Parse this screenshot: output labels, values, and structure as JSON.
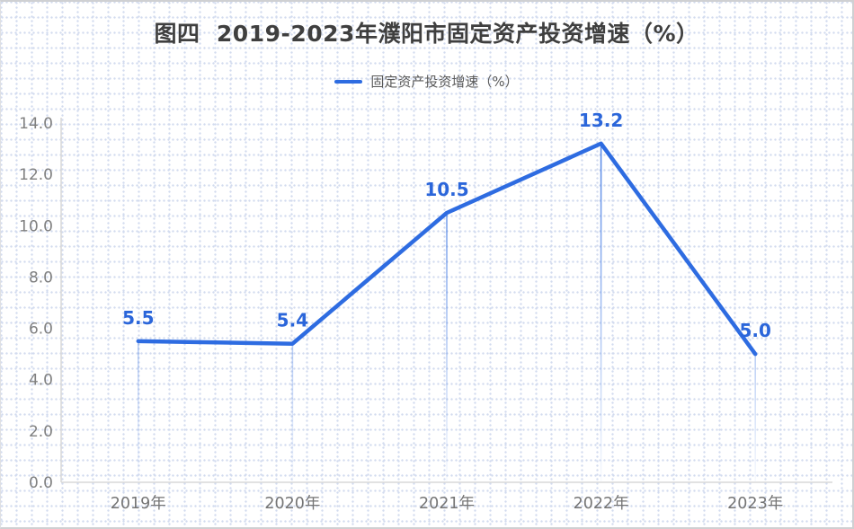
{
  "title": "图四  2019-2023年濮阳市固定资产投资增速（%）",
  "legend": {
    "label": "固定资产投资增速（%）"
  },
  "chart_data": {
    "type": "line",
    "title": "图四  2019-2023年濮阳市固定资产投资增速（%）",
    "categories": [
      "2019年",
      "2020年",
      "2021年",
      "2022年",
      "2023年"
    ],
    "series": [
      {
        "name": "固定资产投资增速（%）",
        "values": [
          5.5,
          5.4,
          10.5,
          13.2,
          5.0
        ]
      }
    ],
    "data_labels": [
      "5.5",
      "5.4",
      "10.5",
      "13.2",
      "5.0"
    ],
    "xlabel": "",
    "ylabel": "",
    "ylim": [
      0,
      14
    ],
    "ytick_labels": [
      "0.0",
      "2.0",
      "4.0",
      "6.0",
      "8.0",
      "10.0",
      "12.0",
      "14.0"
    ],
    "ytick_values": [
      0,
      2,
      4,
      6,
      8,
      10,
      12,
      14
    ],
    "grid": false,
    "legend_position": "top",
    "colors": {
      "line": "#2e6ce1",
      "data_label": "#2b66da",
      "ytick_text": "#808080",
      "xtick_text": "#757575",
      "axis_line": "#d8d8d8",
      "title_text": "#3f3f3f",
      "legend_text": "#595959",
      "background_dots": "#d2dbef"
    }
  }
}
